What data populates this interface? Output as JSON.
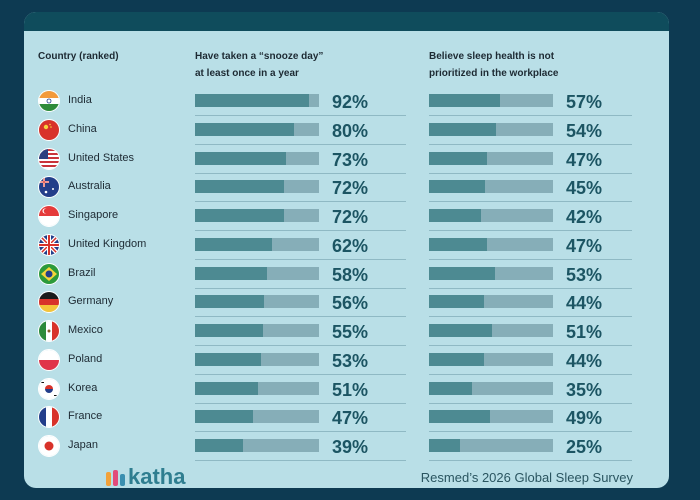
{
  "headers": {
    "country": "Country (ranked)",
    "snooze_line1": "Have taken a “snooze day”",
    "snooze_line2": "at least once in a year",
    "sleep_line1": "Believe sleep health is not",
    "sleep_line2": "prioritized in the workplace"
  },
  "footer": {
    "logo": "katha",
    "source": "Resmed’s 2026 Global Sleep Survey"
  },
  "chart_data": {
    "type": "bar",
    "categories": [
      "India",
      "China",
      "United States",
      "Australia",
      "Singapore",
      "United Kingdom",
      "Brazil",
      "Germany",
      "Mexico",
      "Poland",
      "Korea",
      "France",
      "Japan"
    ],
    "series": [
      {
        "values": [
          92,
          80,
          73,
          72,
          72,
          62,
          58,
          56,
          55,
          53,
          51,
          47,
          39
        ]
      },
      {
        "values": [
          57,
          54,
          47,
          45,
          42,
          47,
          53,
          44,
          51,
          44,
          35,
          49,
          25
        ]
      }
    ],
    "value_labels": [
      [
        "92%",
        "80%",
        "73%",
        "72%",
        "72%",
        "62%",
        "58%",
        "56%",
        "55%",
        "53%",
        "51%",
        "47%",
        "39%"
      ],
      [
        "57%",
        "54%",
        "47%",
        "45%",
        "42%",
        "47%",
        "53%",
        "44%",
        "51%",
        "44%",
        "35%",
        "49%",
        "25%"
      ]
    ],
    "ylim": [
      0,
      100
    ]
  },
  "flags": [
    "india-flag",
    "china-flag",
    "united-states-flag",
    "australia-flag",
    "singapore-flag",
    "united-kingdom-flag",
    "brazil-flag",
    "germany-flag",
    "mexico-flag",
    "poland-flag",
    "korea-flag",
    "france-flag",
    "japan-flag"
  ],
  "colors": {
    "page_bg": "#0d3a52",
    "card_bg": "#b9dfe7",
    "bar_track": "#86aeb8",
    "bar_fill": "#4d8a92",
    "pct_text": "#1c5563"
  }
}
